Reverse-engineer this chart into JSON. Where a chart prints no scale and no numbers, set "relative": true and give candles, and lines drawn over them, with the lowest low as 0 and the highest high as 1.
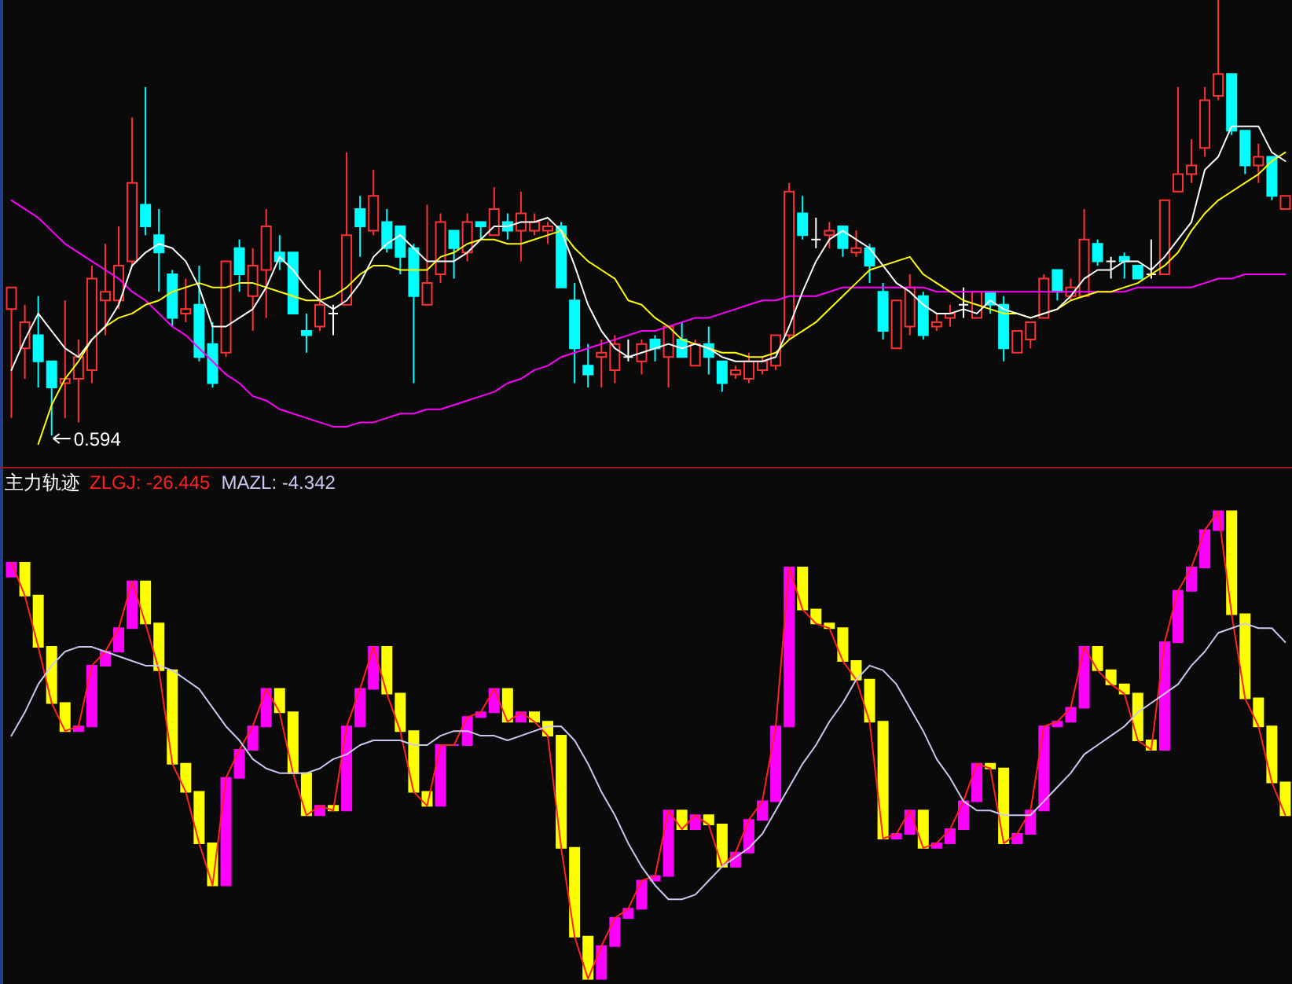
{
  "chart_data": [
    {
      "type": "candlestick",
      "relative": true,
      "categories": [
        null,
        null,
        null,
        null,
        null,
        null,
        null,
        null,
        null,
        null,
        null,
        null,
        null,
        null,
        null,
        null,
        null,
        null,
        null,
        null,
        null,
        null,
        null,
        null,
        null,
        null,
        null,
        null,
        null,
        null,
        null,
        null,
        null,
        null,
        null,
        null,
        null,
        null,
        null,
        null,
        null,
        null,
        null,
        null,
        null,
        null,
        null,
        null,
        null,
        null,
        null,
        null,
        null,
        null,
        null,
        null,
        null,
        null,
        null,
        null,
        null,
        null,
        null,
        null,
        null,
        null,
        null,
        null,
        null,
        null,
        null,
        null,
        null,
        null,
        null,
        null,
        null,
        null,
        null,
        null,
        null,
        null,
        null,
        null,
        null,
        null,
        null,
        null,
        null,
        null,
        null,
        null,
        null,
        null,
        null,
        null
      ],
      "ohlc": [
        [
          0.29,
          0.34,
          0.04,
          0.34
        ],
        [
          0.2,
          0.3,
          0.13,
          0.26
        ],
        [
          0.23,
          0.32,
          0.11,
          0.17
        ],
        [
          0.17,
          0.17,
          0,
          0.11
        ],
        [
          0.12,
          0.31,
          0.04,
          0.13
        ],
        [
          0.13,
          0.22,
          0.03,
          0.18
        ],
        [
          0.15,
          0.39,
          0.12,
          0.36
        ],
        [
          0.31,
          0.44,
          0.23,
          0.33
        ],
        [
          0.31,
          0.48,
          0.29,
          0.39
        ],
        [
          0.4,
          0.73,
          0.39,
          0.58
        ],
        [
          0.53,
          0.8,
          0.46,
          0.48
        ],
        [
          0.46,
          0.52,
          0.33,
          0.42
        ],
        [
          0.37,
          0.38,
          0.25,
          0.27
        ],
        [
          0.28,
          0.36,
          0.26,
          0.29
        ],
        [
          0.3,
          0.39,
          0.17,
          0.18
        ],
        [
          0.21,
          0.26,
          0.11,
          0.12
        ],
        [
          0.19,
          0.4,
          0.18,
          0.4
        ],
        [
          0.43,
          0.45,
          0.33,
          0.37
        ],
        [
          0.32,
          0.43,
          0.24,
          0.39
        ],
        [
          0.38,
          0.52,
          0.27,
          0.48
        ],
        [
          0.42,
          0.46,
          0.38,
          0.4
        ],
        [
          0.42,
          0.42,
          0.28,
          0.28
        ],
        [
          0.24,
          0.28,
          0.19,
          0.23
        ],
        [
          0.25,
          0.38,
          0.24,
          0.3
        ],
        [
          0.28,
          0.3,
          0.23,
          0.28
        ],
        [
          0.3,
          0.65,
          0.3,
          0.46
        ],
        [
          0.52,
          0.55,
          0.41,
          0.48
        ],
        [
          0.47,
          0.61,
          0.46,
          0.55
        ],
        [
          0.49,
          0.52,
          0.42,
          0.43
        ],
        [
          0.48,
          0.48,
          0.37,
          0.41
        ],
        [
          0.43,
          0.44,
          0.12,
          0.32
        ],
        [
          0.3,
          0.53,
          0.3,
          0.35
        ],
        [
          0.37,
          0.51,
          0.35,
          0.49
        ],
        [
          0.47,
          0.47,
          0.36,
          0.43
        ],
        [
          0.42,
          0.51,
          0.4,
          0.49
        ],
        [
          0.49,
          0.49,
          0.45,
          0.48
        ],
        [
          0.46,
          0.57,
          0.46,
          0.52
        ],
        [
          0.49,
          0.51,
          0.45,
          0.47
        ],
        [
          0.47,
          0.56,
          0.4,
          0.51
        ],
        [
          0.47,
          0.51,
          0.46,
          0.49
        ],
        [
          0.47,
          0.49,
          0.44,
          0.48
        ],
        [
          0.48,
          0.49,
          0.34,
          0.34
        ],
        [
          0.31,
          0.35,
          0.12,
          0.2
        ],
        [
          0.16,
          0.21,
          0.11,
          0.14
        ],
        [
          0.18,
          0.22,
          0.11,
          0.19
        ],
        [
          0.15,
          0.23,
          0.12,
          0.21
        ],
        [
          0.18,
          0.22,
          0.17,
          0.18
        ],
        [
          0.17,
          0.22,
          0.14,
          0.21
        ],
        [
          0.22,
          0.23,
          0.17,
          0.2
        ],
        [
          0.18,
          0.25,
          0.11,
          0.25
        ],
        [
          0.22,
          0.26,
          0.18,
          0.18
        ],
        [
          0.16,
          0.22,
          0.16,
          0.21
        ],
        [
          0.21,
          0.25,
          0.14,
          0.18
        ],
        [
          0.17,
          0.17,
          0.1,
          0.12
        ],
        [
          0.14,
          0.16,
          0.13,
          0.15
        ],
        [
          0.13,
          0.19,
          0.12,
          0.17
        ],
        [
          0.15,
          0.18,
          0.14,
          0.17
        ],
        [
          0.16,
          0.23,
          0.15,
          0.23
        ],
        [
          0.23,
          0.58,
          0.22,
          0.56
        ],
        [
          0.51,
          0.55,
          0.45,
          0.46
        ],
        [
          0.45,
          0.5,
          0.43,
          0.45
        ],
        [
          0.46,
          0.49,
          0.43,
          0.47
        ],
        [
          0.48,
          0.48,
          0.41,
          0.43
        ],
        [
          0.42,
          0.47,
          0.41,
          0.43
        ],
        [
          0.43,
          0.44,
          0.35,
          0.39
        ],
        [
          0.33,
          0.35,
          0.22,
          0.24
        ],
        [
          0.2,
          0.31,
          0.2,
          0.31
        ],
        [
          0.25,
          0.37,
          0.23,
          0.34
        ],
        [
          0.32,
          0.33,
          0.22,
          0.23
        ],
        [
          0.25,
          0.28,
          0.24,
          0.26
        ],
        [
          0.27,
          0.3,
          0.25,
          0.28
        ],
        [
          0.3,
          0.34,
          0.27,
          0.3
        ],
        [
          0.27,
          0.33,
          0.27,
          0.33
        ],
        [
          0.33,
          0.33,
          0.28,
          0.3
        ],
        [
          0.3,
          0.32,
          0.17,
          0.2
        ],
        [
          0.19,
          0.24,
          0.19,
          0.24
        ],
        [
          0.22,
          0.26,
          0.2,
          0.26
        ],
        [
          0.27,
          0.37,
          0.27,
          0.36
        ],
        [
          0.38,
          0.38,
          0.31,
          0.33
        ],
        [
          0.32,
          0.36,
          0.31,
          0.34
        ],
        [
          0.32,
          0.52,
          0.32,
          0.45
        ],
        [
          0.44,
          0.45,
          0.39,
          0.4
        ],
        [
          0.4,
          0.41,
          0.36,
          0.4
        ],
        [
          0.41,
          0.42,
          0.36,
          0.4
        ],
        [
          0.39,
          0.39,
          0.36,
          0.36
        ],
        [
          0.37,
          0.45,
          0.36,
          0.37
        ],
        [
          0.37,
          0.54,
          0.37,
          0.54
        ],
        [
          0.56,
          0.8,
          0.56,
          0.6
        ],
        [
          0.6,
          0.68,
          0.58,
          0.62
        ],
        [
          0.66,
          0.8,
          0.64,
          0.77
        ],
        [
          0.78,
          1,
          0.77,
          0.83
        ],
        [
          0.83,
          0.83,
          0.69,
          0.7
        ],
        [
          0.7,
          0.7,
          0.6,
          0.62
        ],
        [
          0.62,
          0.67,
          0.58,
          0.64
        ],
        [
          0.64,
          0.64,
          0.54,
          0.55
        ],
        [
          0.52,
          0.55,
          0.52,
          0.55
        ]
      ],
      "colors": [
        "#ff3232",
        "#ff3232",
        "#00ffff",
        "#00ffff",
        "#ff3232",
        "#ff3232",
        "#ff3232",
        "#ff3232",
        "#ff3232",
        "#ff3232",
        "#00ffff",
        "#00ffff",
        "#00ffff",
        "#ff3232",
        "#00ffff",
        "#00ffff",
        "#ff3232",
        "#00ffff",
        "#ff3232",
        "#ff3232",
        "#00ffff",
        "#00ffff",
        "#00ffff",
        "#ff3232",
        "#ffffff",
        "#ff3232",
        "#00ffff",
        "#ff3232",
        "#00ffff",
        "#00ffff",
        "#00ffff",
        "#ff3232",
        "#ff3232",
        "#00ffff",
        "#ff3232",
        "#00ffff",
        "#ff3232",
        "#00ffff",
        "#ff3232",
        "#ff3232",
        "#ff3232",
        "#00ffff",
        "#00ffff",
        "#00ffff",
        "#ff3232",
        "#ff3232",
        "#ffffff",
        "#ff3232",
        "#00ffff",
        "#ff3232",
        "#00ffff",
        "#ff3232",
        "#00ffff",
        "#00ffff",
        "#ff3232",
        "#ff3232",
        "#ff3232",
        "#ff3232",
        "#ff3232",
        "#00ffff",
        "#ffffff",
        "#ff3232",
        "#00ffff",
        "#ff3232",
        "#00ffff",
        "#00ffff",
        "#ff3232",
        "#ff3232",
        "#00ffff",
        "#ff3232",
        "#ff3232",
        "#ffffff",
        "#ff3232",
        "#00ffff",
        "#00ffff",
        "#ff3232",
        "#ff3232",
        "#ff3232",
        "#00ffff",
        "#ff3232",
        "#ff3232",
        "#00ffff",
        "#ffffff",
        "#00ffff",
        "#00ffff",
        "#ffffff",
        "#ff3232",
        "#ff3232",
        "#ff3232",
        "#ff3232",
        "#ff3232",
        "#00ffff",
        "#00ffff",
        "#ff3232",
        "#00ffff",
        "#ff3232"
      ],
      "series": [
        {
          "type": "line",
          "color": "#ff00ff",
          "values": [
            0.54,
            0.52,
            0.5,
            0.47,
            0.44,
            0.42,
            0.4,
            0.38,
            0.36,
            0.33,
            0.31,
            0.28,
            0.25,
            0.23,
            0.2,
            0.17,
            0.14,
            0.12,
            0.09,
            0.08,
            0.06,
            0.05,
            0.04,
            0.03,
            0.02,
            0.02,
            0.03,
            0.03,
            0.04,
            0.05,
            0.05,
            0.06,
            0.06,
            0.07,
            0.08,
            0.09,
            0.1,
            0.12,
            0.13,
            0.15,
            0.16,
            0.18,
            0.19,
            0.2,
            0.21,
            0.22,
            0.23,
            0.24,
            0.24,
            0.25,
            0.26,
            0.27,
            0.27,
            0.28,
            0.29,
            0.3,
            0.31,
            0.31,
            0.32,
            0.32,
            0.32,
            0.33,
            0.34,
            0.34,
            0.34,
            0.34,
            0.34,
            0.34,
            0.34,
            0.33,
            0.33,
            0.33,
            0.33,
            0.33,
            0.33,
            0.33,
            0.33,
            0.33,
            0.33,
            0.33,
            0.33,
            0.33,
            0.33,
            0.33,
            0.34,
            0.34,
            0.34,
            0.34,
            0.34,
            0.35,
            0.36,
            0.36,
            0.37,
            0.37,
            0.37,
            0.37
          ]
        },
        {
          "type": "line",
          "color": "#ffff00",
          "values": [
            null,
            null,
            -0.02,
            0.07,
            0.13,
            0.17,
            0.22,
            0.25,
            0.27,
            0.28,
            0.3,
            0.31,
            0.33,
            0.34,
            0.35,
            0.34,
            0.34,
            0.35,
            0.35,
            0.34,
            0.33,
            0.32,
            0.31,
            0.31,
            0.32,
            0.34,
            0.37,
            0.39,
            0.39,
            0.38,
            0.38,
            0.38,
            0.41,
            0.42,
            0.44,
            0.45,
            0.45,
            0.44,
            0.44,
            0.45,
            0.46,
            0.47,
            0.43,
            0.4,
            0.38,
            0.36,
            0.31,
            0.3,
            0.27,
            0.25,
            0.22,
            0.21,
            0.2,
            0.19,
            0.19,
            0.18,
            0.18,
            0.19,
            0.22,
            0.24,
            0.26,
            0.29,
            0.32,
            0.35,
            0.38,
            0.39,
            0.4,
            0.41,
            0.37,
            0.35,
            0.33,
            0.31,
            0.3,
            0.29,
            0.28,
            0.28,
            0.27,
            0.28,
            0.29,
            0.31,
            0.32,
            0.33,
            0.33,
            0.34,
            0.35,
            0.37,
            0.39,
            0.42,
            0.47,
            0.51,
            0.54,
            0.56,
            0.58,
            0.6,
            0.63,
            0.65
          ]
        },
        {
          "type": "line",
          "color": "#ffffff",
          "values": [
            0.15,
            0.22,
            0.28,
            0.24,
            0.2,
            0.18,
            0.22,
            0.25,
            0.3,
            0.39,
            0.42,
            0.44,
            0.43,
            0.4,
            0.34,
            0.25,
            0.25,
            0.27,
            0.29,
            0.34,
            0.41,
            0.38,
            0.34,
            0.31,
            0.29,
            0.31,
            0.35,
            0.41,
            0.44,
            0.46,
            0.43,
            0.4,
            0.4,
            0.4,
            0.42,
            0.45,
            0.48,
            0.48,
            0.49,
            0.49,
            0.5,
            0.47,
            0.39,
            0.3,
            0.24,
            0.2,
            0.18,
            0.19,
            0.2,
            0.21,
            0.2,
            0.21,
            0.2,
            0.18,
            0.17,
            0.17,
            0.17,
            0.18,
            0.25,
            0.33,
            0.4,
            0.45,
            0.47,
            0.45,
            0.43,
            0.39,
            0.35,
            0.33,
            0.3,
            0.28,
            0.28,
            0.29,
            0.28,
            0.31,
            0.29,
            0.28,
            0.27,
            0.28,
            0.29,
            0.32,
            0.36,
            0.38,
            0.38,
            0.4,
            0.4,
            0.38,
            0.41,
            0.45,
            0.49,
            0.61,
            0.64,
            0.71,
            0.71,
            0.71,
            0.65,
            0.63
          ]
        }
      ],
      "annotations": [
        "0.594"
      ]
    },
    {
      "type": "candlestick",
      "relative": true,
      "title": "主力轨迹",
      "categories": [
        null,
        null,
        null,
        null,
        null,
        null,
        null,
        null,
        null,
        null,
        null,
        null,
        null,
        null,
        null,
        null,
        null,
        null,
        null,
        null,
        null,
        null,
        null,
        null,
        null,
        null,
        null,
        null,
        null,
        null,
        null,
        null,
        null,
        null,
        null,
        null,
        null,
        null,
        null,
        null,
        null,
        null,
        null,
        null,
        null,
        null,
        null,
        null,
        null,
        null,
        null,
        null,
        null,
        null,
        null,
        null,
        null,
        null,
        null,
        null,
        null,
        null,
        null,
        null,
        null,
        null,
        null,
        null,
        null,
        null,
        null,
        null,
        null,
        null,
        null,
        null,
        null,
        null,
        null,
        null,
        null,
        null,
        null,
        null,
        null,
        null,
        null,
        null,
        null,
        null,
        null,
        null,
        null,
        null,
        null,
        null
      ],
      "ohlc": [
        [
          0.86,
          0.89,
          0.86,
          0.89
        ],
        [
          0.89,
          0.89,
          0.82,
          0.82
        ],
        [
          0.82,
          0.82,
          0.71,
          0.71
        ],
        [
          0.71,
          0.71,
          0.59,
          0.59
        ],
        [
          0.59,
          0.59,
          0.53,
          0.53
        ],
        [
          0.53,
          0.54,
          0.53,
          0.54
        ],
        [
          0.54,
          0.67,
          0.54,
          0.67
        ],
        [
          0.67,
          0.7,
          0.67,
          0.7
        ],
        [
          0.7,
          0.75,
          0.7,
          0.75
        ],
        [
          0.75,
          0.85,
          0.75,
          0.85
        ],
        [
          0.85,
          0.85,
          0.76,
          0.76
        ],
        [
          0.76,
          0.76,
          0.66,
          0.66
        ],
        [
          0.66,
          0.66,
          0.46,
          0.46
        ],
        [
          0.46,
          0.46,
          0.4,
          0.4
        ],
        [
          0.4,
          0.4,
          0.29,
          0.29
        ],
        [
          0.29,
          0.29,
          0.2,
          0.2
        ],
        [
          0.2,
          0.43,
          0.2,
          0.43
        ],
        [
          0.43,
          0.49,
          0.43,
          0.49
        ],
        [
          0.49,
          0.54,
          0.49,
          0.54
        ],
        [
          0.54,
          0.62,
          0.54,
          0.62
        ],
        [
          0.62,
          0.62,
          0.57,
          0.57
        ],
        [
          0.57,
          0.57,
          0.44,
          0.44
        ],
        [
          0.44,
          0.44,
          0.35,
          0.35
        ],
        [
          0.35,
          0.37,
          0.35,
          0.37
        ],
        [
          0.37,
          0.37,
          0.36,
          0.36
        ],
        [
          0.36,
          0.54,
          0.36,
          0.54
        ],
        [
          0.54,
          0.62,
          0.54,
          0.62
        ],
        [
          0.62,
          0.71,
          0.62,
          0.71
        ],
        [
          0.71,
          0.71,
          0.61,
          0.61
        ],
        [
          0.61,
          0.61,
          0.53,
          0.53
        ],
        [
          0.53,
          0.53,
          0.4,
          0.4
        ],
        [
          0.4,
          0.4,
          0.37,
          0.37
        ],
        [
          0.37,
          0.5,
          0.37,
          0.5
        ],
        [
          0.5,
          0.5,
          0.5,
          0.5
        ],
        [
          0.5,
          0.56,
          0.5,
          0.56
        ],
        [
          0.56,
          0.57,
          0.56,
          0.57
        ],
        [
          0.57,
          0.62,
          0.57,
          0.62
        ],
        [
          0.62,
          0.62,
          0.55,
          0.55
        ],
        [
          0.55,
          0.57,
          0.55,
          0.57
        ],
        [
          0.57,
          0.57,
          0.55,
          0.55
        ],
        [
          0.55,
          0.55,
          0.52,
          0.52
        ],
        [
          0.52,
          0.52,
          0.28,
          0.28
        ],
        [
          0.28,
          0.28,
          0.09,
          0.09
        ],
        [
          0.09,
          0.09,
          0,
          0
        ],
        [
          0,
          0.07,
          0,
          0.07
        ],
        [
          0.07,
          0.13,
          0.07,
          0.13
        ],
        [
          0.13,
          0.15,
          0.13,
          0.15
        ],
        [
          0.15,
          0.21,
          0.15,
          0.21
        ],
        [
          0.21,
          0.22,
          0.21,
          0.22
        ],
        [
          0.22,
          0.36,
          0.22,
          0.36
        ],
        [
          0.36,
          0.36,
          0.32,
          0.32
        ],
        [
          0.32,
          0.35,
          0.32,
          0.35
        ],
        [
          0.35,
          0.35,
          0.33,
          0.33
        ],
        [
          0.33,
          0.33,
          0.24,
          0.24
        ],
        [
          0.24,
          0.27,
          0.24,
          0.27
        ],
        [
          0.27,
          0.34,
          0.27,
          0.34
        ],
        [
          0.34,
          0.38,
          0.34,
          0.38
        ],
        [
          0.38,
          0.54,
          0.38,
          0.54
        ],
        [
          0.54,
          0.88,
          0.54,
          0.88
        ],
        [
          0.88,
          0.88,
          0.79,
          0.79
        ],
        [
          0.79,
          0.79,
          0.76,
          0.76
        ],
        [
          0.76,
          0.76,
          0.75,
          0.75
        ],
        [
          0.75,
          0.75,
          0.68,
          0.68
        ],
        [
          0.68,
          0.68,
          0.64,
          0.64
        ],
        [
          0.64,
          0.64,
          0.55,
          0.55
        ],
        [
          0.55,
          0.55,
          0.3,
          0.3
        ],
        [
          0.3,
          0.31,
          0.3,
          0.31
        ],
        [
          0.31,
          0.36,
          0.31,
          0.36
        ],
        [
          0.36,
          0.36,
          0.28,
          0.28
        ],
        [
          0.28,
          0.29,
          0.28,
          0.29
        ],
        [
          0.29,
          0.32,
          0.29,
          0.32
        ],
        [
          0.32,
          0.38,
          0.32,
          0.38
        ],
        [
          0.38,
          0.46,
          0.38,
          0.46
        ],
        [
          0.46,
          0.46,
          0.45,
          0.45
        ],
        [
          0.45,
          0.45,
          0.29,
          0.29
        ],
        [
          0.29,
          0.31,
          0.29,
          0.31
        ],
        [
          0.31,
          0.36,
          0.31,
          0.36
        ],
        [
          0.36,
          0.54,
          0.36,
          0.54
        ],
        [
          0.54,
          0.55,
          0.54,
          0.55
        ],
        [
          0.55,
          0.58,
          0.55,
          0.58
        ],
        [
          0.58,
          0.71,
          0.58,
          0.71
        ],
        [
          0.71,
          0.71,
          0.66,
          0.66
        ],
        [
          0.66,
          0.66,
          0.63,
          0.63
        ],
        [
          0.63,
          0.63,
          0.61,
          0.61
        ],
        [
          0.61,
          0.61,
          0.51,
          0.51
        ],
        [
          0.51,
          0.51,
          0.49,
          0.49
        ],
        [
          0.49,
          0.72,
          0.49,
          0.72
        ],
        [
          0.72,
          0.83,
          0.72,
          0.83
        ],
        [
          0.83,
          0.88,
          0.83,
          0.88
        ],
        [
          0.88,
          0.96,
          0.88,
          0.96
        ],
        [
          0.96,
          1,
          0.96,
          1
        ],
        [
          1,
          1,
          0.78,
          0.78
        ],
        [
          0.78,
          0.78,
          0.6,
          0.6
        ],
        [
          0.6,
          0.6,
          0.54,
          0.54
        ],
        [
          0.54,
          0.54,
          0.42,
          0.42
        ],
        [
          0.42,
          0.42,
          0.35,
          0.35
        ]
      ],
      "colors": [
        "#ff00ff",
        "#ffff00",
        "#ffff00",
        "#ffff00",
        "#ffff00",
        "#ff00ff",
        "#ff00ff",
        "#ff00ff",
        "#ff00ff",
        "#ff00ff",
        "#ffff00",
        "#ffff00",
        "#ffff00",
        "#ffff00",
        "#ffff00",
        "#ffff00",
        "#ff00ff",
        "#ff00ff",
        "#ff00ff",
        "#ff00ff",
        "#ffff00",
        "#ffff00",
        "#ffff00",
        "#ff00ff",
        "#ffff00",
        "#ff00ff",
        "#ff00ff",
        "#ff00ff",
        "#ffff00",
        "#ffff00",
        "#ffff00",
        "#ffff00",
        "#ff00ff",
        "#ff00ff",
        "#ff00ff",
        "#ff00ff",
        "#ff00ff",
        "#ffff00",
        "#ff00ff",
        "#ffff00",
        "#ffff00",
        "#ffff00",
        "#ffff00",
        "#ffff00",
        "#ff00ff",
        "#ff00ff",
        "#ff00ff",
        "#ff00ff",
        "#ff00ff",
        "#ff00ff",
        "#ffff00",
        "#ff00ff",
        "#ffff00",
        "#ffff00",
        "#ff00ff",
        "#ff00ff",
        "#ff00ff",
        "#ff00ff",
        "#ff00ff",
        "#ffff00",
        "#ffff00",
        "#ffff00",
        "#ffff00",
        "#ffff00",
        "#ffff00",
        "#ffff00",
        "#ff00ff",
        "#ff00ff",
        "#ffff00",
        "#ff00ff",
        "#ff00ff",
        "#ff00ff",
        "#ff00ff",
        "#ffff00",
        "#ffff00",
        "#ff00ff",
        "#ff00ff",
        "#ff00ff",
        "#ff00ff",
        "#ff00ff",
        "#ff00ff",
        "#ffff00",
        "#ffff00",
        "#ffff00",
        "#ffff00",
        "#ffff00",
        "#ff00ff",
        "#ff00ff",
        "#ff00ff",
        "#ff00ff",
        "#ff00ff",
        "#ffff00",
        "#ffff00",
        "#ffff00",
        "#ffff00",
        "#ffff00"
      ],
      "series": [
        {
          "type": "line",
          "name": "ZLGJ: -26.445",
          "color": "#ff2020",
          "values": [
            0.89,
            0.82,
            0.71,
            0.59,
            0.53,
            0.54,
            0.67,
            0.7,
            0.75,
            0.85,
            0.76,
            0.66,
            0.46,
            0.4,
            0.29,
            0.2,
            0.43,
            0.49,
            0.54,
            0.62,
            0.57,
            0.44,
            0.35,
            0.37,
            0.36,
            0.54,
            0.62,
            0.71,
            0.61,
            0.53,
            0.4,
            0.37,
            0.5,
            0.5,
            0.56,
            0.57,
            0.62,
            0.55,
            0.57,
            0.55,
            0.52,
            0.28,
            0.09,
            0,
            0.07,
            0.13,
            0.15,
            0.21,
            0.22,
            0.36,
            0.32,
            0.35,
            0.33,
            0.24,
            0.27,
            0.34,
            0.38,
            0.54,
            0.88,
            0.79,
            0.76,
            0.75,
            0.68,
            0.64,
            0.55,
            0.3,
            0.31,
            0.36,
            0.28,
            0.29,
            0.32,
            0.38,
            0.46,
            0.45,
            0.29,
            0.31,
            0.36,
            0.54,
            0.55,
            0.58,
            0.71,
            0.66,
            0.63,
            0.61,
            0.51,
            0.49,
            0.72,
            0.83,
            0.88,
            0.96,
            1,
            0.78,
            0.6,
            0.54,
            0.42,
            0.35
          ]
        },
        {
          "type": "line",
          "name": "MAZL: -4.342",
          "color": "#c8c8f0",
          "values": [
            0.52,
            0.57,
            0.63,
            0.67,
            0.7,
            0.71,
            0.71,
            0.7,
            0.69,
            0.68,
            0.67,
            0.67,
            0.66,
            0.64,
            0.62,
            0.58,
            0.54,
            0.51,
            0.47,
            0.45,
            0.44,
            0.44,
            0.44,
            0.45,
            0.47,
            0.48,
            0.5,
            0.51,
            0.51,
            0.51,
            0.5,
            0.5,
            0.52,
            0.53,
            0.53,
            0.52,
            0.52,
            0.51,
            0.52,
            0.53,
            0.54,
            0.54,
            0.51,
            0.46,
            0.4,
            0.35,
            0.29,
            0.24,
            0.2,
            0.17,
            0.17,
            0.18,
            0.21,
            0.24,
            0.26,
            0.28,
            0.31,
            0.36,
            0.41,
            0.46,
            0.5,
            0.55,
            0.59,
            0.64,
            0.67,
            0.66,
            0.63,
            0.58,
            0.53,
            0.47,
            0.43,
            0.38,
            0.36,
            0.36,
            0.35,
            0.35,
            0.35,
            0.38,
            0.41,
            0.44,
            0.48,
            0.5,
            0.52,
            0.54,
            0.57,
            0.59,
            0.61,
            0.63,
            0.67,
            0.7,
            0.74,
            0.75,
            0.76,
            0.75,
            0.75,
            0.72
          ]
        }
      ]
    }
  ]
}
